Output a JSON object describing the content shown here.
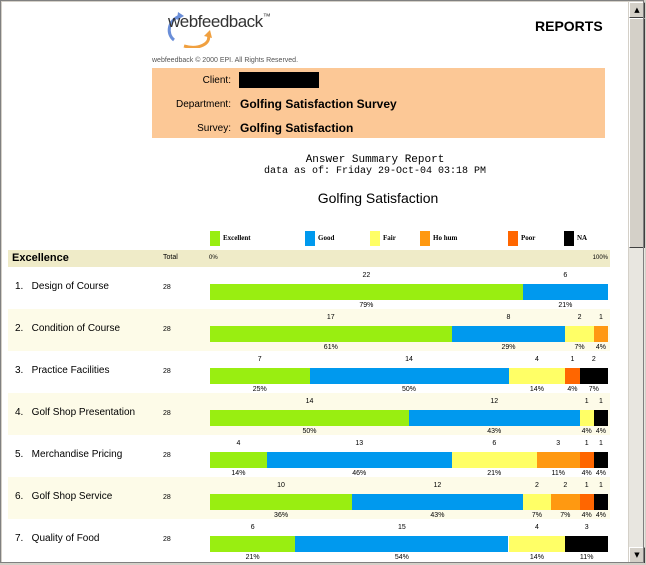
{
  "header": {
    "logo_text": "webfeedback",
    "logo_tm": "™",
    "reports_title": "REPORTS",
    "copyright": "webfeedback © 2000 EPI. All Rights Reserved."
  },
  "info": {
    "client_label": "Client:",
    "client_value": "",
    "department_label": "Department:",
    "department_value": "Golfing Satisfaction Survey",
    "survey_label": "Survey:",
    "survey_value": "Golfing Satisfaction"
  },
  "report": {
    "title": "Answer Summary Report",
    "date": "data as of: Friday 29-Oct-04 03:18 PM"
  },
  "colors": {
    "Excellent": "#99ee11",
    "Good": "#0099ee",
    "Fair": "#ffff66",
    "Ho hum": "#ff9911",
    "Poor": "#ff6600",
    "NA": "#000000"
  },
  "chart_data": {
    "type": "bar",
    "orientation": "horizontal-stacked-100",
    "title": "Golfing Satisfaction",
    "section": "Excellence",
    "total_header": "Total",
    "axis_min_label": "0%",
    "axis_max_label": "100%",
    "legend_placement": "top",
    "series_names": [
      "Excellent",
      "Good",
      "Fair",
      "Ho hum",
      "Poor",
      "NA"
    ],
    "rows": [
      {
        "index": "1.",
        "label": "Design of Course",
        "total": 28,
        "counts": [
          22,
          6,
          0,
          0,
          0,
          0
        ],
        "percents": [
          "79%",
          "21%",
          "",
          "",
          "",
          ""
        ]
      },
      {
        "index": "2.",
        "label": "Condition of Course",
        "total": 28,
        "counts": [
          17,
          8,
          2,
          1,
          0,
          0
        ],
        "percents": [
          "61%",
          "29%",
          "7%",
          "4%",
          "",
          ""
        ]
      },
      {
        "index": "3.",
        "label": "Practice Facilities",
        "total": 28,
        "counts": [
          7,
          14,
          4,
          0,
          1,
          2
        ],
        "percents": [
          "25%",
          "50%",
          "14%",
          "",
          "4%",
          "7%"
        ]
      },
      {
        "index": "4.",
        "label": "Golf Shop Presentation",
        "total": 28,
        "counts": [
          14,
          12,
          1,
          0,
          0,
          1
        ],
        "percents": [
          "50%",
          "43%",
          "4%",
          "",
          "",
          "4%"
        ]
      },
      {
        "index": "5.",
        "label": "Merchandise Pricing",
        "total": 28,
        "counts": [
          4,
          13,
          6,
          3,
          1,
          1
        ],
        "percents": [
          "14%",
          "46%",
          "21%",
          "11%",
          "4%",
          "4%"
        ]
      },
      {
        "index": "6.",
        "label": "Golf Shop Service",
        "total": 28,
        "counts": [
          10,
          12,
          2,
          2,
          1,
          1
        ],
        "percents": [
          "36%",
          "43%",
          "7%",
          "7%",
          "4%",
          "4%"
        ]
      },
      {
        "index": "7.",
        "label": "Quality of Food",
        "total": 28,
        "counts": [
          6,
          15,
          4,
          0,
          0,
          3
        ],
        "percents": [
          "21%",
          "54%",
          "14%",
          "",
          "",
          "11%"
        ]
      }
    ]
  }
}
